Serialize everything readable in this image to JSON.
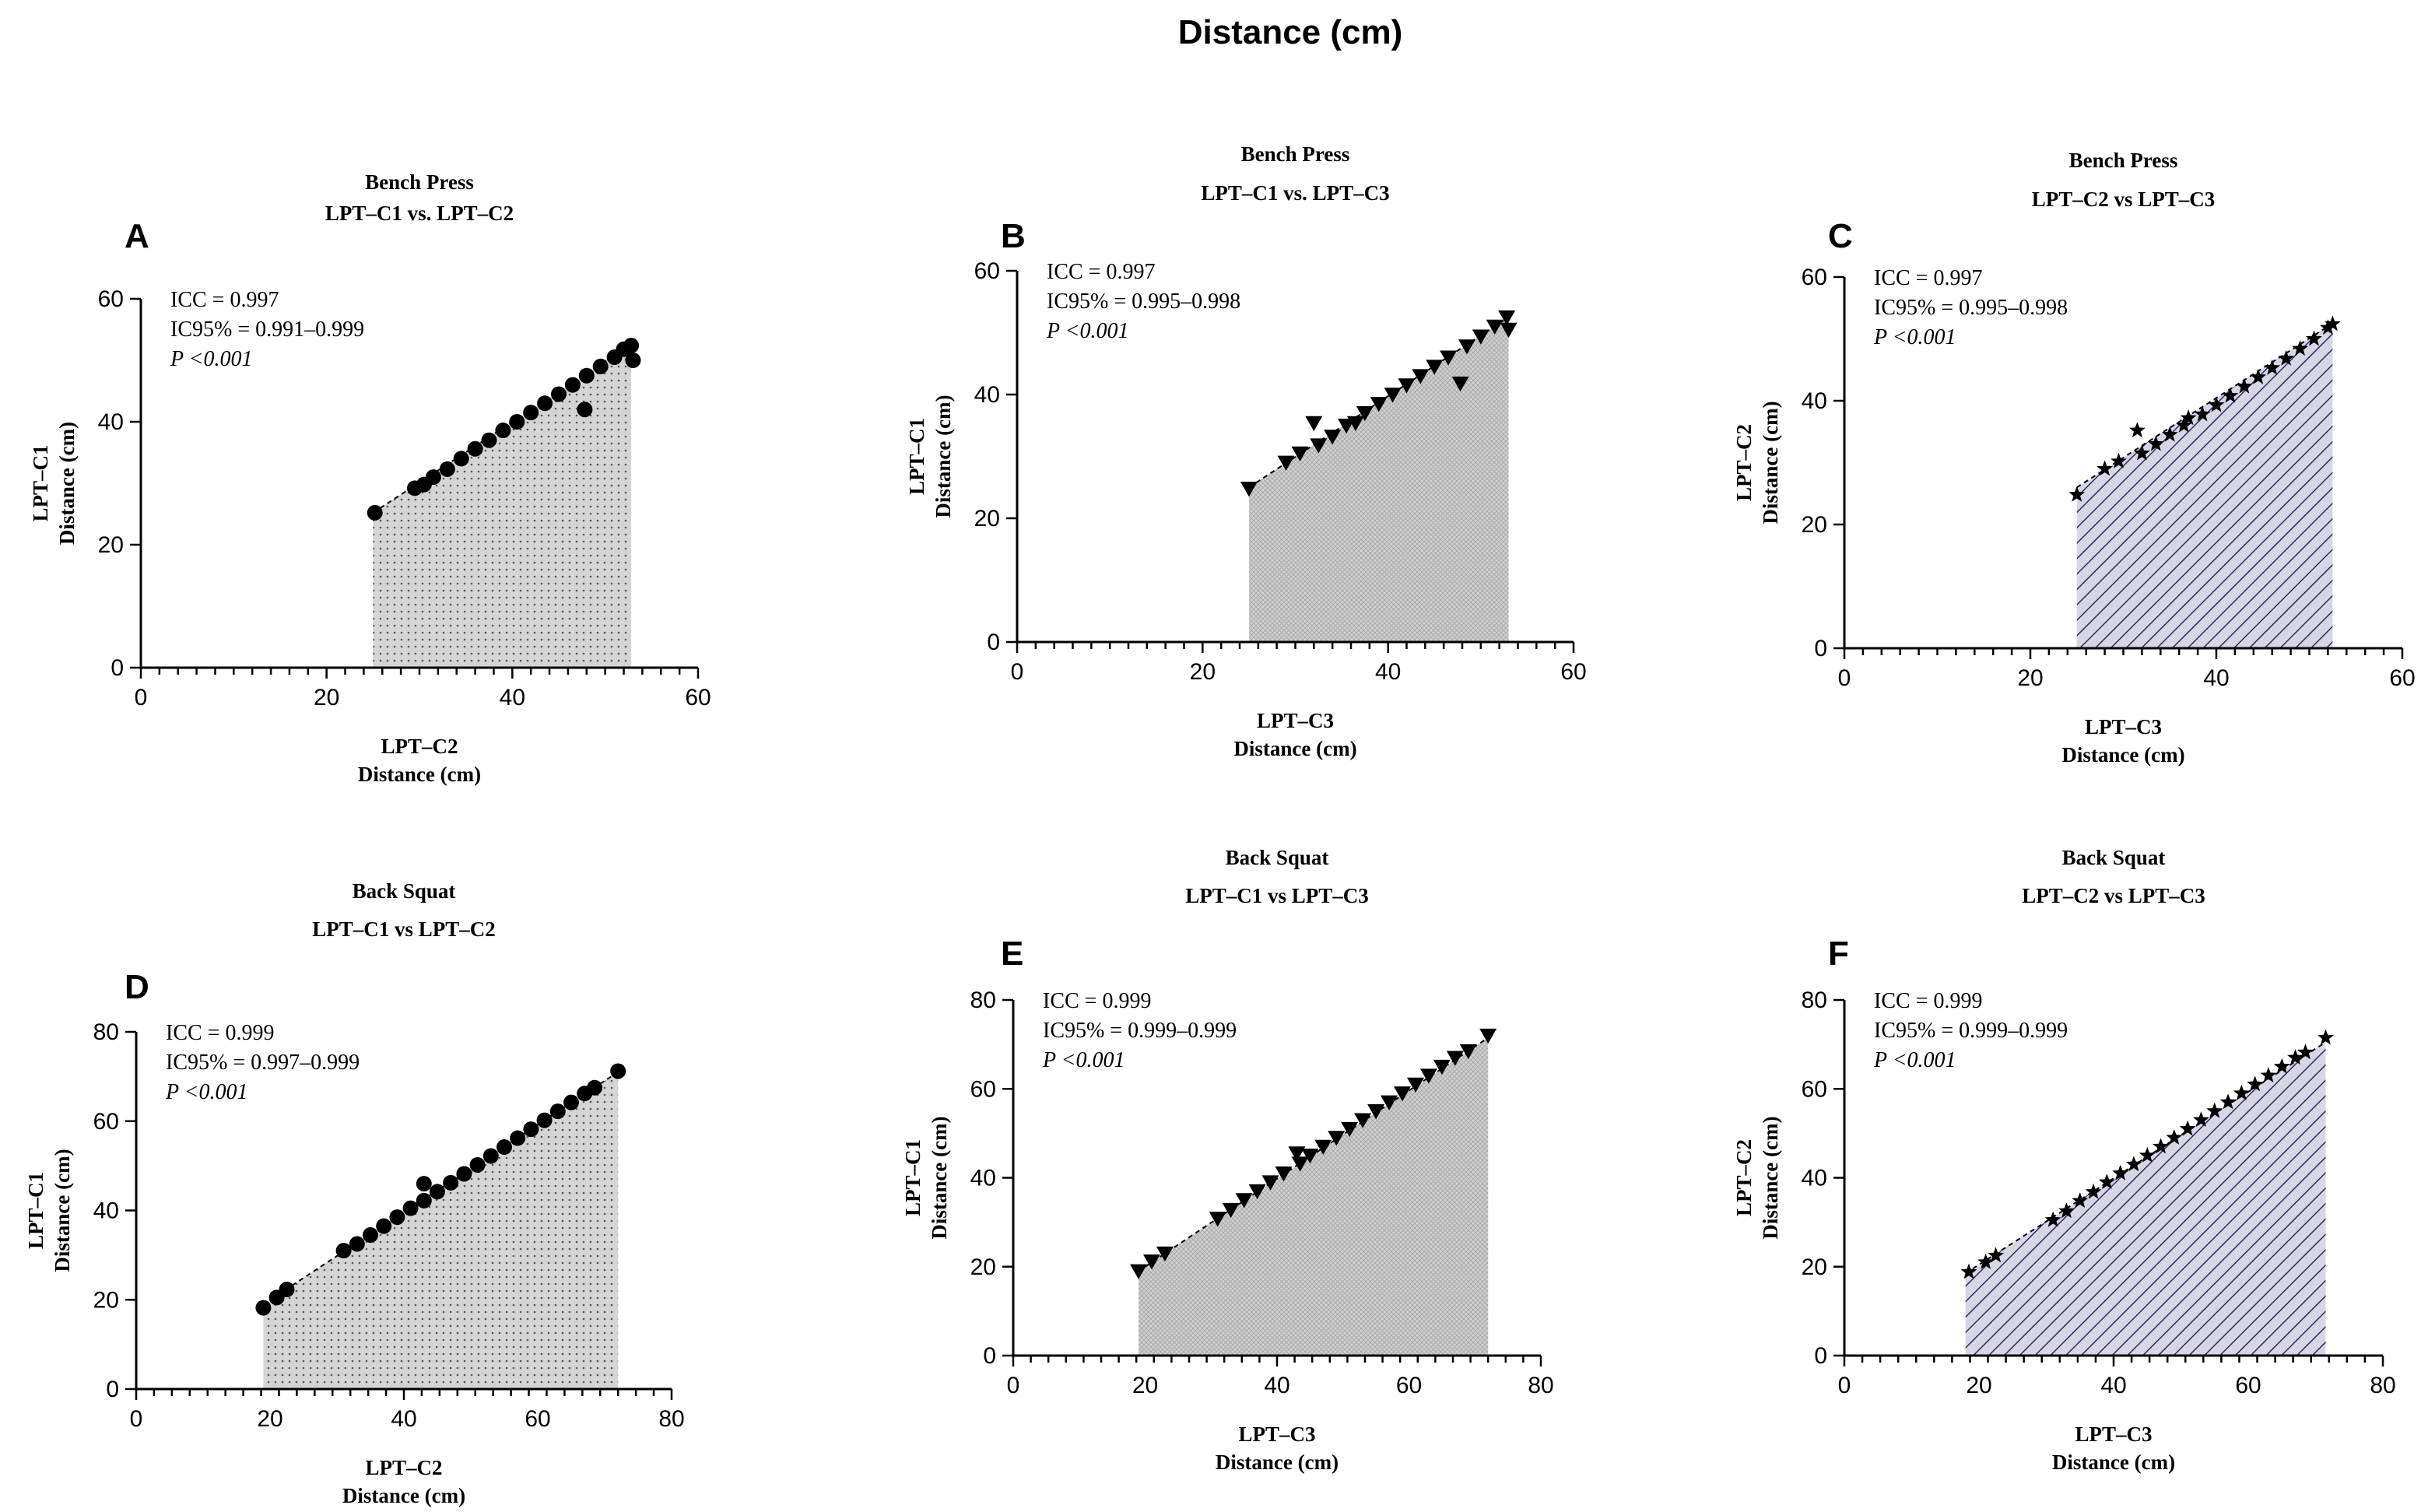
{
  "figure_title": "Distance (cm)",
  "colors": {
    "ink": "#000000",
    "fill_gray": "#d4d4d4",
    "fill_navy": "#cfcfe0",
    "hatch_navy": "#2d2d58"
  },
  "chart_data": [
    {
      "letter": "A",
      "type": "scatter",
      "title": [
        "Bench Press",
        "LPT–C1 vs. LPT–C2"
      ],
      "xlabel": [
        "LPT–C2",
        "Distance (cm)"
      ],
      "ylabel": [
        "LPT–C1",
        "Distance (cm)"
      ],
      "xlim": [
        0,
        60
      ],
      "ylim": [
        0,
        60
      ],
      "xticks": [
        0,
        20,
        40,
        60
      ],
      "yticks": [
        0,
        20,
        40,
        60
      ],
      "stats": [
        "ICC = 0.997",
        "IC95% = 0.991–0.999",
        "P <0.001"
      ],
      "marker": "circle",
      "fill": "dots",
      "line": [
        [
          25,
          25.2
        ],
        [
          52.8,
          52.6
        ]
      ],
      "points": [
        [
          25.2,
          25.2
        ],
        [
          29.5,
          29.2
        ],
        [
          30.5,
          29.8
        ],
        [
          31.5,
          31
        ],
        [
          33,
          32.3
        ],
        [
          34.5,
          34
        ],
        [
          36,
          35.6
        ],
        [
          37.5,
          37
        ],
        [
          39,
          38.6
        ],
        [
          40.5,
          40
        ],
        [
          42,
          41.5
        ],
        [
          43.5,
          43
        ],
        [
          45,
          44.5
        ],
        [
          46.5,
          46
        ],
        [
          47.8,
          42
        ],
        [
          48,
          47.5
        ],
        [
          49.5,
          49
        ],
        [
          51,
          50.5
        ],
        [
          52,
          51.8
        ],
        [
          52.8,
          52.4
        ],
        [
          53,
          50
        ]
      ]
    },
    {
      "letter": "B",
      "type": "scatter",
      "title": [
        "Bench Press",
        "LPT–C1 vs. LPT–C3"
      ],
      "xlabel": [
        "LPT–C3",
        "Distance (cm)"
      ],
      "ylabel": [
        "LPT–C1",
        "Distance (cm)"
      ],
      "xlim": [
        0,
        60
      ],
      "ylim": [
        0,
        60
      ],
      "xticks": [
        0,
        20,
        40,
        60
      ],
      "yticks": [
        0,
        20,
        40,
        60
      ],
      "stats": [
        "ICC = 0.997",
        "IC95% = 0.995–0.998",
        "P <0.001"
      ],
      "marker": "triangle",
      "fill": "crosshatch",
      "line": [
        [
          25,
          25
        ],
        [
          53,
          52.5
        ]
      ],
      "points": [
        [
          25,
          24.8
        ],
        [
          29,
          29
        ],
        [
          30.5,
          30.5
        ],
        [
          32,
          35.4
        ],
        [
          32.5,
          31.8
        ],
        [
          34,
          33.2
        ],
        [
          35.5,
          35
        ],
        [
          36.5,
          35.4
        ],
        [
          37.5,
          37
        ],
        [
          39,
          38.5
        ],
        [
          40.5,
          40
        ],
        [
          42,
          41.5
        ],
        [
          43.5,
          43
        ],
        [
          45,
          44.5
        ],
        [
          46.5,
          46
        ],
        [
          47.8,
          41.8
        ],
        [
          48.5,
          47.8
        ],
        [
          50,
          49.4
        ],
        [
          51.5,
          51
        ],
        [
          52.8,
          52.5
        ],
        [
          53,
          50.5
        ]
      ]
    },
    {
      "letter": "C",
      "type": "scatter",
      "title": [
        "Bench Press",
        "LPT–C2 vs LPT–C3"
      ],
      "xlabel": [
        "LPT–C3",
        "Distance (cm)"
      ],
      "ylabel": [
        "LPT–C2",
        "Distance (cm)"
      ],
      "xlim": [
        0,
        60
      ],
      "ylim": [
        0,
        60
      ],
      "xticks": [
        0,
        20,
        40,
        60
      ],
      "yticks": [
        0,
        20,
        40,
        60
      ],
      "stats": [
        "ICC = 0.997",
        "IC95% = 0.995–0.998",
        "P <0.001"
      ],
      "marker": "star",
      "fill": "hatch",
      "line": [
        [
          25,
          26
        ],
        [
          52.5,
          52.5
        ]
      ],
      "points": [
        [
          25,
          24.8
        ],
        [
          28,
          29
        ],
        [
          29.5,
          30.2
        ],
        [
          31.5,
          35.2
        ],
        [
          32,
          31.5
        ],
        [
          33.5,
          33
        ],
        [
          35,
          34.5
        ],
        [
          36.5,
          36
        ],
        [
          37,
          37.2
        ],
        [
          38.5,
          37.8
        ],
        [
          40,
          39.3
        ],
        [
          41.5,
          40.8
        ],
        [
          43,
          42.3
        ],
        [
          44.5,
          43.8
        ],
        [
          46,
          45.3
        ],
        [
          47.5,
          46.8
        ],
        [
          49,
          48.4
        ],
        [
          50.5,
          50
        ],
        [
          52,
          51.8
        ],
        [
          52.5,
          52.4
        ]
      ]
    },
    {
      "letter": "D",
      "type": "scatter",
      "title": [
        "Back Squat",
        "LPT–C1 vs LPT–C2"
      ],
      "xlabel": [
        "LPT–C2",
        "Distance (cm)"
      ],
      "ylabel": [
        "LPT–C1",
        "Distance (cm)"
      ],
      "xlim": [
        0,
        80
      ],
      "ylim": [
        0,
        80
      ],
      "xticks": [
        0,
        20,
        40,
        60,
        80
      ],
      "yticks": [
        0,
        20,
        40,
        60,
        80
      ],
      "stats": [
        "ICC = 0.999",
        "IC95% = 0.997–0.999",
        "P <0.001"
      ],
      "marker": "circle",
      "fill": "dots",
      "line": [
        [
          19,
          19
        ],
        [
          72,
          71
        ]
      ],
      "points": [
        [
          19,
          18.2
        ],
        [
          21,
          20.5
        ],
        [
          22.5,
          22.3
        ],
        [
          31,
          31
        ],
        [
          33,
          32.5
        ],
        [
          35,
          34.5
        ],
        [
          37,
          36.5
        ],
        [
          39,
          38.5
        ],
        [
          41,
          40.5
        ],
        [
          43,
          46
        ],
        [
          43,
          42.2
        ],
        [
          45,
          44.2
        ],
        [
          47,
          46.2
        ],
        [
          49,
          48.2
        ],
        [
          51,
          50.2
        ],
        [
          53,
          52.2
        ],
        [
          55,
          54.2
        ],
        [
          57,
          56.2
        ],
        [
          59,
          58.2
        ],
        [
          61,
          60.2
        ],
        [
          63,
          62.2
        ],
        [
          65,
          64.2
        ],
        [
          67,
          66.2
        ],
        [
          68.5,
          67.5
        ],
        [
          72,
          71.2
        ]
      ]
    },
    {
      "letter": "E",
      "type": "scatter",
      "title": [
        "Back Squat",
        "LPT–C1 vs LPT–C3"
      ],
      "xlabel": [
        "LPT–C3",
        "Distance (cm)"
      ],
      "ylabel": [
        "LPT–C1",
        "Distance (cm)"
      ],
      "xlim": [
        0,
        80
      ],
      "ylim": [
        0,
        80
      ],
      "xticks": [
        0,
        20,
        40,
        60,
        80
      ],
      "yticks": [
        0,
        20,
        40,
        60,
        80
      ],
      "stats": [
        "ICC = 0.999",
        "IC95% = 0.999–0.999",
        "P <0.001"
      ],
      "marker": "triangle",
      "fill": "crosshatch",
      "line": [
        [
          19,
          19
        ],
        [
          72,
          71.5
        ]
      ],
      "points": [
        [
          19,
          19
        ],
        [
          21,
          21.2
        ],
        [
          23,
          23
        ],
        [
          31,
          30.8
        ],
        [
          33,
          32.8
        ],
        [
          35,
          35
        ],
        [
          37,
          37
        ],
        [
          39,
          39
        ],
        [
          41,
          41
        ],
        [
          43,
          45.5
        ],
        [
          43.5,
          43.2
        ],
        [
          45,
          45
        ],
        [
          47,
          47
        ],
        [
          49,
          49
        ],
        [
          51,
          51
        ],
        [
          53,
          53
        ],
        [
          55,
          55
        ],
        [
          57,
          57
        ],
        [
          59,
          59
        ],
        [
          61,
          61
        ],
        [
          63,
          63
        ],
        [
          65,
          65
        ],
        [
          67,
          67
        ],
        [
          69,
          68.5
        ],
        [
          72,
          72
        ]
      ]
    },
    {
      "letter": "F",
      "type": "scatter",
      "title": [
        "Back Squat",
        "LPT–C2 vs LPT–C3"
      ],
      "xlabel": [
        "LPT–C3",
        "Distance (cm)"
      ],
      "ylabel": [
        "LPT–C2",
        "Distance (cm)"
      ],
      "xlim": [
        0,
        80
      ],
      "ylim": [
        0,
        80
      ],
      "xticks": [
        0,
        20,
        40,
        60,
        80
      ],
      "yticks": [
        0,
        20,
        40,
        60,
        80
      ],
      "stats": [
        "ICC = 0.999",
        "IC95% = 0.999–0.999",
        "P <0.001"
      ],
      "marker": "star",
      "fill": "hatch",
      "line": [
        [
          18,
          18.5
        ],
        [
          71.5,
          70.5
        ]
      ],
      "points": [
        [
          18.5,
          18.8
        ],
        [
          21,
          21
        ],
        [
          22.5,
          22.5
        ],
        [
          31,
          30.5
        ],
        [
          33,
          32.5
        ],
        [
          35,
          34.8
        ],
        [
          37,
          36.8
        ],
        [
          39,
          39
        ],
        [
          41,
          41
        ],
        [
          43,
          43
        ],
        [
          45,
          45
        ],
        [
          47,
          47
        ],
        [
          49,
          49
        ],
        [
          51,
          51
        ],
        [
          53,
          53
        ],
        [
          55,
          55
        ],
        [
          57,
          57
        ],
        [
          59,
          59
        ],
        [
          61,
          61
        ],
        [
          63,
          63
        ],
        [
          65,
          65
        ],
        [
          67,
          67
        ],
        [
          68.5,
          68.2
        ],
        [
          71.5,
          71.5
        ]
      ]
    }
  ]
}
